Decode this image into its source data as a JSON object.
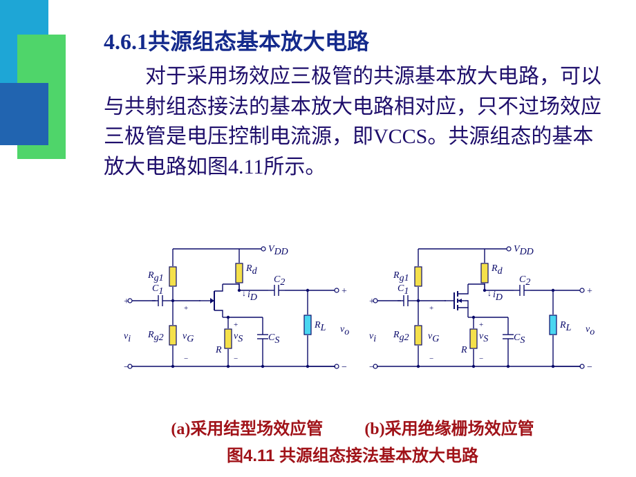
{
  "colors": {
    "heading": "#142a8c",
    "body": "#1e0e6b",
    "caption": "#a01218",
    "figtitle": "#a01218",
    "deco1": "#1ea6d6",
    "deco2": "#4fd56a",
    "deco3": "#2164b0",
    "wire": "#0a0a6a",
    "resistor_fill": "#f4e04a",
    "load_fill": "#4ad6f0",
    "text_label": "#0a0a6a"
  },
  "heading": "4.6.1共源组态基本放大电路",
  "body": "对于采用场效应三极管的共源基本放大电路，可以与共射组态接法的基本放大电路相对应，只不过场效应三极管是电压控制电流源，即VCCS。共源组态的基本放大电路如图4.11所示。",
  "labels": {
    "Vdd": "V",
    "Vdd_sub": "DD",
    "Rd": "R",
    "Rd_sub": "d",
    "Rg1": "R",
    "Rg1_sub": "g1",
    "Rg2": "R",
    "Rg2_sub": "g2",
    "R": "R",
    "RL": "R",
    "RL_sub": "L",
    "C1": "C",
    "C1_sub": "1",
    "C2": "C",
    "C2_sub": "2",
    "Cs": "C",
    "Cs_sub": "S",
    "vi": "v",
    "vi_sub": "i",
    "vo": "v",
    "vo_sub": "o",
    "vG": "v",
    "vG_sub": "G",
    "vS": "v",
    "vS_sub": "S",
    "iD": "i",
    "iD_sub": "D",
    "plus": "+",
    "minus": "−",
    "open": "○",
    "arrow_down": "↓"
  },
  "captions": {
    "a": "(a)采用结型场效应管",
    "b": "(b)采用绝缘栅场效应管",
    "title": "图4.11 共源组态接法基本放大电路"
  },
  "figure": {
    "type": "circuit-diagram",
    "stroke_width": 1.4,
    "resistor_w": 10,
    "resistor_h": 28
  }
}
